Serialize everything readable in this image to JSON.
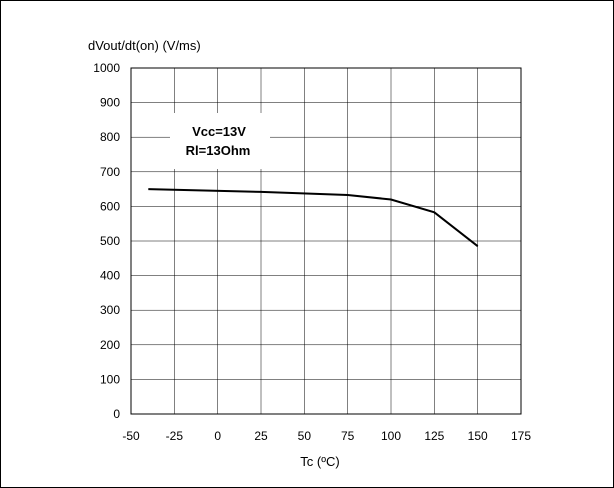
{
  "chart_data": {
    "type": "line",
    "title": "",
    "ylabel": "dVout/dt(on) (V/ms)",
    "xlabel": "Tc (ºC)",
    "xlim": [
      -50,
      175
    ],
    "ylim": [
      0,
      1000
    ],
    "x_ticks": [
      -50,
      -25,
      0,
      25,
      50,
      75,
      100,
      125,
      150,
      175
    ],
    "y_ticks": [
      0,
      100,
      200,
      300,
      400,
      500,
      600,
      700,
      800,
      900,
      1000
    ],
    "grid": true,
    "series": [
      {
        "x": [
          -40,
          25,
          75,
          100,
          125,
          150
        ],
        "y": [
          650,
          642,
          633,
          620,
          583,
          485
        ]
      }
    ],
    "annotation": {
      "lines": [
        "Vcc=13V",
        "Rl=13Ohm"
      ]
    }
  },
  "colors": {
    "line": "#000000",
    "grid": "#000000",
    "plot_bg": "#ffffff"
  }
}
